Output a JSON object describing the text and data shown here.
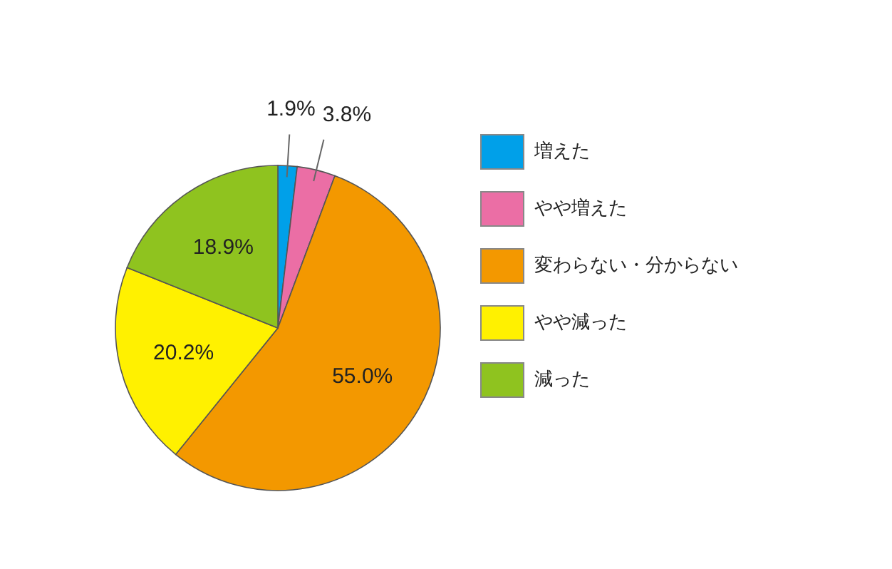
{
  "chart_data": {
    "type": "pie",
    "categories": [
      "増えた",
      "やや増えた",
      "変わらない・分からない",
      "やや減った",
      "減った"
    ],
    "values": [
      1.9,
      3.8,
      55.0,
      20.2,
      18.9
    ],
    "colors": [
      "#00a0e9",
      "#eb6ea5",
      "#f39800",
      "#fff100",
      "#8fc31f"
    ],
    "value_labels": [
      "1.9%",
      "3.8%",
      "55.0%",
      "20.2%",
      "18.9%"
    ],
    "legend": "right"
  }
}
